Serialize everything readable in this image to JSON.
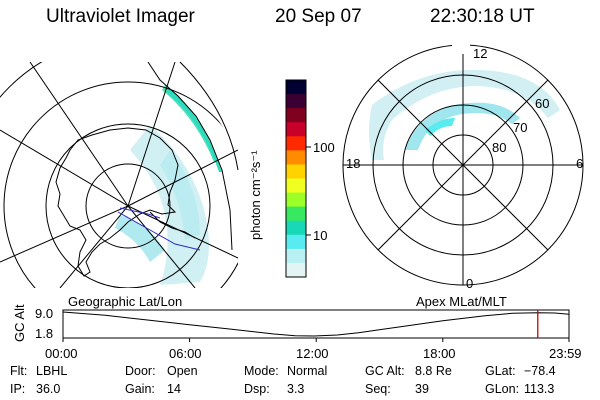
{
  "header": {
    "instrument": "Ultraviolet Imager",
    "date": "20 Sep 07",
    "time": "22:30:18 UT"
  },
  "colorbar": {
    "unit_label": "photon cm⁻²s⁻¹",
    "tick_labels": [
      "100",
      "10"
    ],
    "colors": [
      "#000033",
      "#3a0033",
      "#800020",
      "#c8002a",
      "#ff2a00",
      "#ff8c00",
      "#ffd200",
      "#f0ff20",
      "#9cff28",
      "#38e860",
      "#18d8b8",
      "#58ecf0",
      "#b8f0f4",
      "#e2f4f4"
    ]
  },
  "apex_dial": {
    "lat_labels": [
      "60",
      "70",
      "80"
    ],
    "mlt_labels": [
      "12",
      "18",
      "6",
      "0"
    ]
  },
  "gc_alt_panel": {
    "ylabel": "GC Alt",
    "y_ticks": [
      "9.0",
      "1.8"
    ],
    "left_title": "Geographic Lat/Lon",
    "right_title": "Apex MLat/MLT",
    "x_ticks": [
      "00:00",
      "06:00",
      "12:00",
      "18:00",
      "23:59"
    ],
    "marker_color": "#d00000"
  },
  "chart_data": {
    "type": "line",
    "xlabel": "",
    "ylabel": "GC Alt",
    "x_hours": [
      0.0,
      2.0,
      4.0,
      6.0,
      8.0,
      10.0,
      11.0,
      11.9,
      13.0,
      14.0,
      16.0,
      18.0,
      20.0,
      21.3,
      22.5,
      23.3,
      23.98
    ],
    "y_gc_alt": [
      9.0,
      8.0,
      6.6,
      5.2,
      3.8,
      2.4,
      1.9,
      1.8,
      2.1,
      2.8,
      4.6,
      6.4,
      7.9,
      8.6,
      8.8,
      8.7,
      8.3
    ],
    "xlim": [
      0.0,
      23.98
    ],
    "ylim": [
      1.8,
      9.0
    ],
    "marker_hour": 22.5
  },
  "status": {
    "flt_label": "Flt:",
    "flt_value": "LBHL",
    "ip_label": "IP:",
    "ip_value": "36.0",
    "door_label": "Door:",
    "door_value": "Open",
    "gain_label": "Gain:",
    "gain_value": "14",
    "mode_label": "Mode:",
    "mode_value": "Normal",
    "dsp_label": "Dsp:",
    "dsp_value": "3.3",
    "gcalt_label": "GC Alt:",
    "gcalt_value": "8.8 Re",
    "seq_label": "Seq:",
    "seq_value": "39",
    "glat_label": "GLat:",
    "glat_value": "−78.4",
    "glon_label": "GLon:",
    "glon_value": "113.3"
  }
}
